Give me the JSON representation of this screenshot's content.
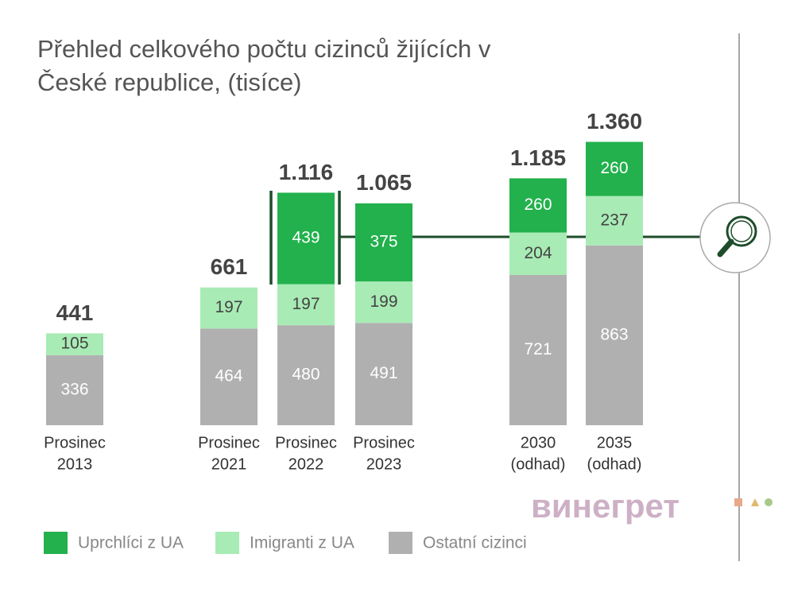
{
  "chart_data": {
    "type": "stacked_bar",
    "title": [
      "Přehled celkového počtu cizinců žijících v",
      "České republice, (tisíce)"
    ],
    "categories": [
      [
        "Prosinec",
        "2013"
      ],
      [
        "Prosinec",
        "2021"
      ],
      [
        "Prosinec",
        "2022"
      ],
      [
        "Prosinec",
        "2023"
      ],
      [
        "2030",
        "(odhad)"
      ],
      [
        "2035",
        "(odhad)"
      ]
    ],
    "series": [
      {
        "name": "Uprchlíci z UA",
        "color": "#22b14c",
        "values": [
          null,
          null,
          439,
          375,
          260,
          260
        ]
      },
      {
        "name": "Imigranti z UA",
        "color": "#a8ebb5",
        "values": [
          105,
          197,
          197,
          199,
          204,
          237
        ]
      },
      {
        "name": "Ostatní cizinci",
        "color": "#b0b0b0",
        "values": [
          336,
          464,
          480,
          491,
          721,
          863
        ]
      }
    ],
    "totals": {
      "values": [
        441,
        661,
        1116,
        1065,
        1185,
        1360
      ],
      "value_labels": [
        "441",
        "661",
        "1.116",
        "1.065",
        "1.185",
        "1.360"
      ]
    },
    "ylim": [
      0,
      1400
    ],
    "watermark": "винегрет"
  }
}
